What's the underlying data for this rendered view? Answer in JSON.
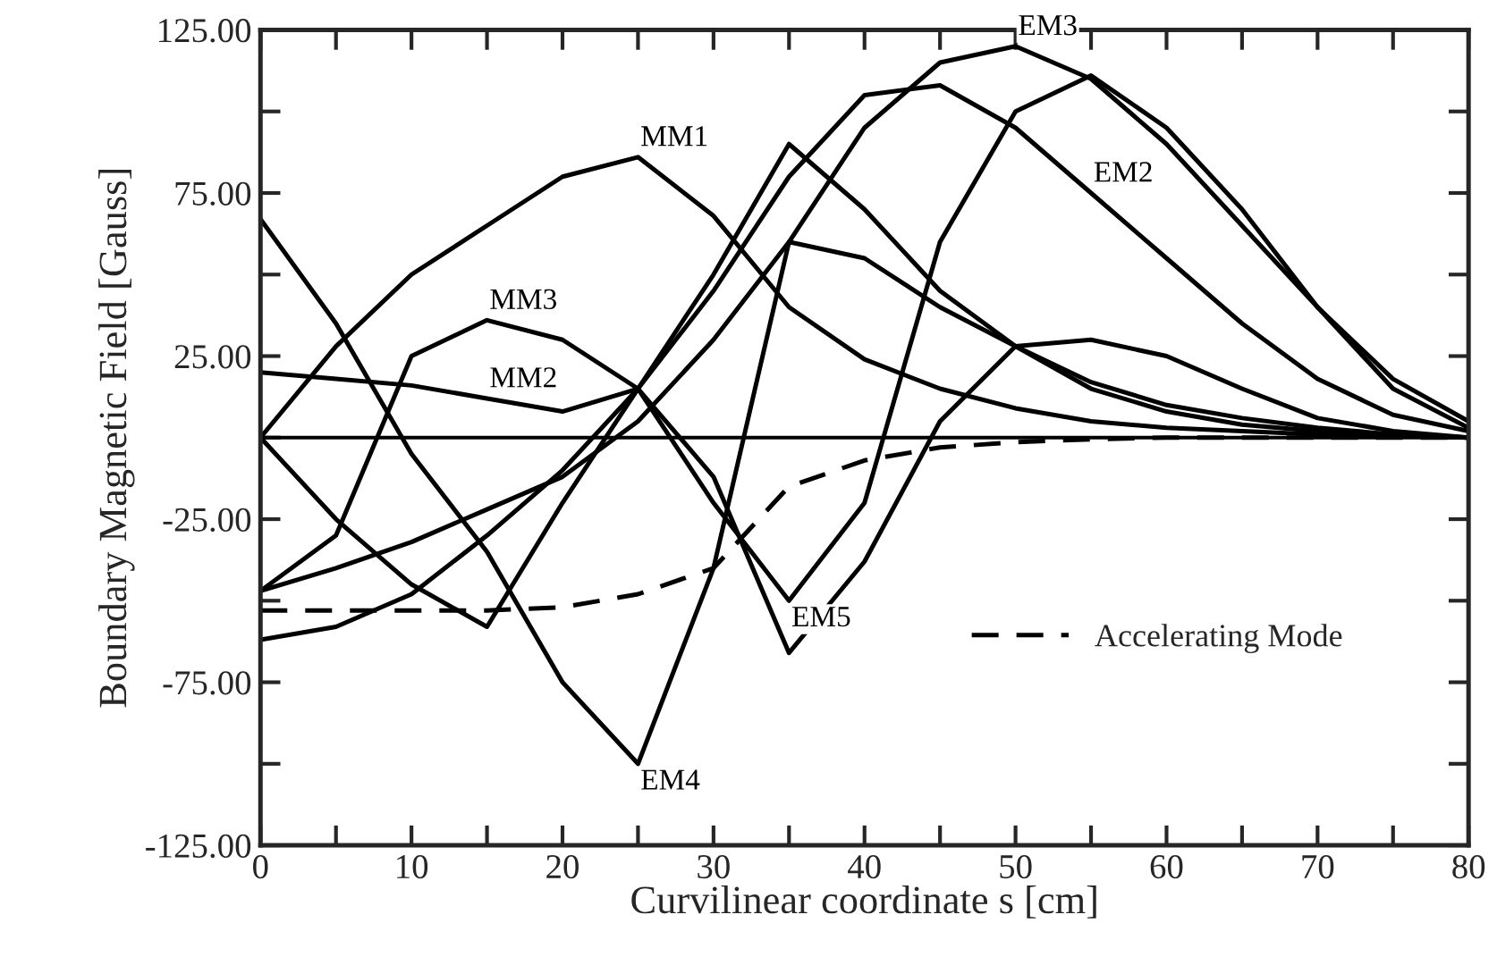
{
  "chart_data": {
    "type": "line",
    "xlabel": "Curvilinear coordinate s [cm]",
    "ylabel": "Boundary Magnetic Field [Gauss]",
    "x": [
      0,
      5,
      10,
      15,
      20,
      25,
      30,
      35,
      40,
      45,
      50,
      55,
      60,
      65,
      70,
      75,
      80
    ],
    "series": [
      {
        "name": "MM1",
        "color": "#000000",
        "values": [
          0,
          28,
          50,
          65,
          80,
          86,
          68,
          40,
          24,
          15,
          9,
          5,
          3,
          2,
          1,
          0.5,
          0
        ]
      },
      {
        "name": "MM2",
        "color": "#000000",
        "values": [
          20,
          18,
          16,
          12,
          8,
          15,
          50,
          90,
          70,
          45,
          28,
          17,
          10,
          6,
          3,
          1,
          0
        ]
      },
      {
        "name": "MM3",
        "color": "#000000",
        "values": [
          -47,
          -30,
          25,
          36,
          30,
          15,
          -12,
          -66,
          -38,
          5,
          28,
          30,
          25,
          15,
          6,
          2,
          0
        ]
      },
      {
        "name": "EM2",
        "color": "#000000",
        "values": [
          -62,
          -58,
          -48,
          -30,
          -10,
          15,
          45,
          80,
          105,
          108,
          95,
          75,
          55,
          35,
          18,
          7,
          2
        ]
      },
      {
        "name": "EM3",
        "color": "#000000",
        "values": [
          -47,
          -40,
          -32,
          -22,
          -12,
          5,
          30,
          60,
          95,
          115,
          120,
          110,
          90,
          65,
          40,
          18,
          5
        ]
      },
      {
        "name": "EM4",
        "color": "#000000",
        "values": [
          67,
          35,
          -5,
          -35,
          -75,
          -100,
          -40,
          60,
          55,
          40,
          28,
          15,
          8,
          4,
          2,
          1,
          0
        ]
      },
      {
        "name": "EM5",
        "color": "#000000",
        "values": [
          0,
          -25,
          -45,
          -58,
          -20,
          15,
          -20,
          -50,
          -20,
          60,
          100,
          111,
          95,
          70,
          40,
          15,
          3
        ]
      },
      {
        "name": "Accelerating Mode",
        "color": "#000000",
        "line_style": "dashed",
        "values": [
          -53,
          -53,
          -53,
          -53,
          -52,
          -48,
          -40,
          -15,
          -7,
          -3,
          -1.4,
          -0.5,
          0,
          0,
          0,
          0,
          0
        ]
      }
    ],
    "xlim": [
      0,
      80
    ],
    "ylim": [
      -125,
      125
    ],
    "xticks": [
      0,
      {
        "value": 5,
        "label": null
      },
      10,
      {
        "value": 15,
        "label": null
      },
      20,
      {
        "value": 25,
        "label": null
      },
      30,
      {
        "value": 35,
        "label": null
      },
      40,
      {
        "value": 45,
        "label": null
      },
      50,
      {
        "value": 55,
        "label": null
      },
      60,
      {
        "value": 65,
        "label": null
      },
      70,
      {
        "value": 75,
        "label": null
      },
      80
    ],
    "yticks": [
      {
        "value": -125,
        "label": "-125.00"
      },
      {
        "value": -100,
        "label": null
      },
      {
        "value": -75,
        "label": "-75.00"
      },
      {
        "value": -50,
        "label": null
      },
      {
        "value": -25,
        "label": "-25.00"
      },
      {
        "value": 0,
        "label": null
      },
      {
        "value": 25,
        "label": "25.00"
      },
      {
        "value": 50,
        "label": null
      },
      {
        "value": 75,
        "label": "75.00"
      },
      {
        "value": 100,
        "label": null
      },
      {
        "value": 125,
        "label": "125.00"
      }
    ],
    "ref_lines": [
      {
        "axis": "y",
        "value": 0,
        "color": "#000000"
      }
    ],
    "grid": false,
    "legend": "bottom right",
    "line_style": "solid",
    "marker": "none"
  }
}
